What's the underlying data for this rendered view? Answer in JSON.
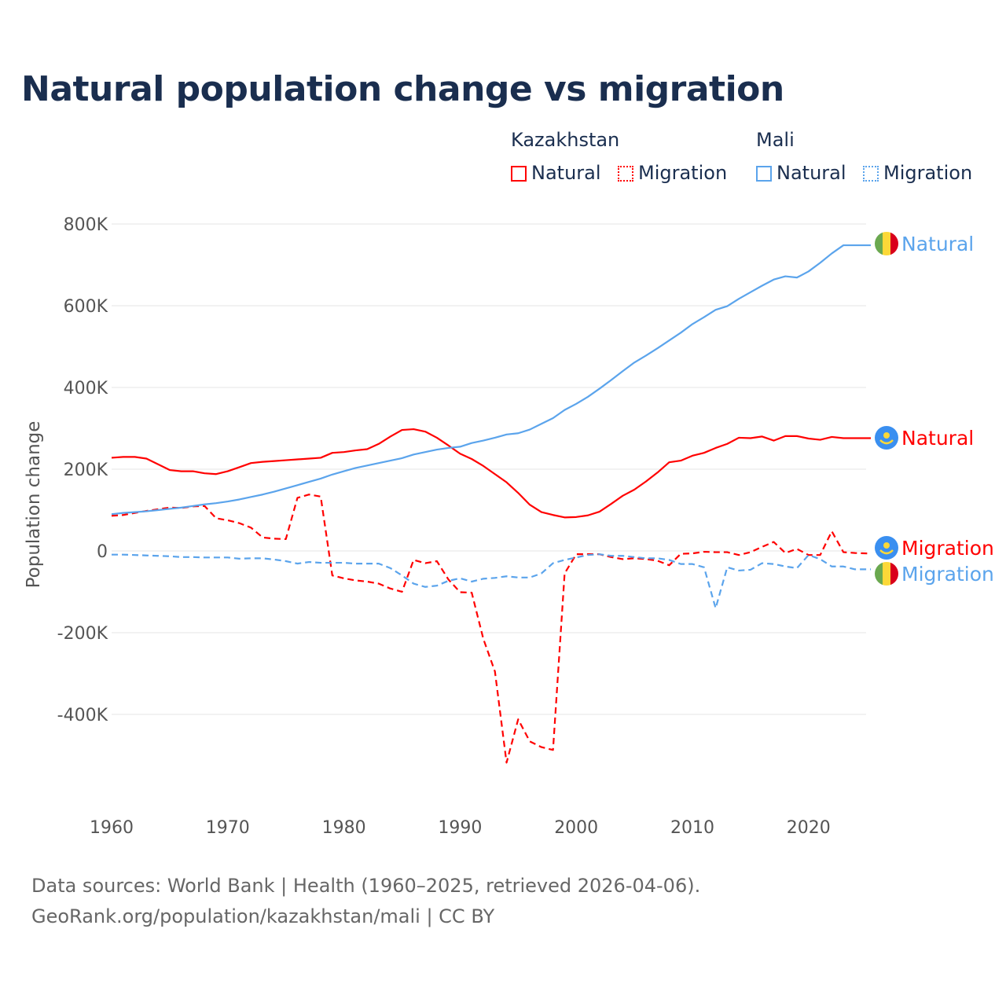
{
  "chart_data": {
    "type": "line",
    "title": "Natural population change vs migration",
    "ylabel": "Population change",
    "xlabel": "",
    "ylim": [
      -550,
      820
    ],
    "xlim": [
      1960,
      2025
    ],
    "yticks": [
      {
        "v": 800,
        "label": "800K"
      },
      {
        "v": 600,
        "label": "600K"
      },
      {
        "v": 400,
        "label": "400K"
      },
      {
        "v": 200,
        "label": "200K"
      },
      {
        "v": 0,
        "label": "0"
      },
      {
        "v": -200,
        "label": "-200K"
      },
      {
        "v": -400,
        "label": "-400K"
      }
    ],
    "xticks": [
      1960,
      1970,
      1980,
      1990,
      2000,
      2010,
      2020
    ],
    "grid": true,
    "units": "thousands",
    "legend": {
      "placement": "top-right",
      "groups": [
        {
          "country": "Kazakhstan",
          "items": [
            "Natural",
            "Migration"
          ]
        },
        {
          "country": "Mali",
          "items": [
            "Natural",
            "Migration"
          ]
        }
      ]
    },
    "series": [
      {
        "name": "Kazakhstan Natural",
        "label": "Natural",
        "color": "#ff0000",
        "dash": false,
        "flag": "kazakhstan",
        "start": 1960,
        "values": [
          228,
          230,
          230,
          226,
          212,
          198,
          195,
          195,
          190,
          188,
          195,
          205,
          215,
          218,
          220,
          222,
          224,
          226,
          228,
          240,
          242,
          246,
          249,
          262,
          280,
          296,
          298,
          292,
          277,
          258,
          238,
          225,
          208,
          188,
          168,
          142,
          113,
          95,
          88,
          82,
          83,
          87,
          96,
          115,
          135,
          150,
          170,
          192,
          217,
          221,
          233,
          240,
          252,
          262,
          277,
          276,
          280,
          270,
          281,
          281,
          275,
          272,
          279,
          276
        ]
      },
      {
        "name": "Kazakhstan Migration",
        "label": "Migration",
        "color": "#ff0000",
        "dash": true,
        "flag": "kazakhstan",
        "start": 1960,
        "values": [
          86,
          88,
          93,
          98,
          102,
          106,
          105,
          109,
          110,
          80,
          75,
          68,
          57,
          33,
          30,
          29,
          130,
          138,
          133,
          -60,
          -67,
          -72,
          -75,
          -80,
          -92,
          -100,
          -22,
          -30,
          -25,
          -70,
          -101,
          -102,
          -215,
          -295,
          -518,
          -412,
          -466,
          -480,
          -487,
          -55,
          -8,
          -8,
          -8,
          -15,
          -20,
          -18,
          -20,
          -24,
          -35,
          -7,
          -6,
          -2,
          -3,
          -3,
          -10,
          -3,
          10,
          22,
          -5,
          5,
          -10,
          -10,
          48,
          -3,
          -5,
          -6
        ]
      },
      {
        "name": "Mali Natural",
        "label": "Natural",
        "color": "#5ba4ec",
        "dash": false,
        "flag": "mali",
        "start": 1960,
        "values": [
          90,
          93,
          95,
          97,
          100,
          103,
          106,
          110,
          114,
          117,
          121,
          126,
          132,
          138,
          145,
          153,
          161,
          169,
          177,
          187,
          195,
          203,
          209,
          215,
          221,
          227,
          236,
          242,
          248,
          252,
          255,
          264,
          270,
          277,
          285,
          288,
          297,
          311,
          325,
          345,
          360,
          377,
          397,
          418,
          440,
          461,
          478,
          496,
          515,
          534,
          555,
          572,
          590,
          599,
          617,
          633,
          649,
          664,
          672,
          669,
          684,
          705,
          728,
          748
        ]
      },
      {
        "name": "Mali Migration",
        "label": "Migration",
        "color": "#5ba4ec",
        "dash": true,
        "flag": "mali",
        "start": 1960,
        "values": [
          -9,
          -9,
          -10,
          -11,
          -12,
          -13,
          -15,
          -15,
          -16,
          -16,
          -16,
          -19,
          -18,
          -18,
          -21,
          -25,
          -31,
          -27,
          -29,
          -29,
          -29,
          -31,
          -31,
          -31,
          -42,
          -60,
          -80,
          -88,
          -85,
          -73,
          -67,
          -75,
          -68,
          -66,
          -62,
          -65,
          -65,
          -55,
          -30,
          -22,
          -16,
          -10,
          -8,
          -12,
          -12,
          -15,
          -18,
          -18,
          -22,
          -32,
          -32,
          -40,
          -140,
          -40,
          -48,
          -46,
          -30,
          -32,
          -38,
          -42,
          -10,
          -20,
          -38,
          -38,
          -45,
          -45
        ]
      }
    ]
  },
  "legend": {
    "kazakhstan": "Kazakhstan",
    "mali": "Mali",
    "natural": "Natural",
    "migration": "Migration"
  },
  "source": {
    "line1": "Data sources: World Bank | Health (1960–2025, retrieved 2026-04-06).",
    "line2": "GeoRank.org/population/kazakhstan/mali | CC BY"
  }
}
